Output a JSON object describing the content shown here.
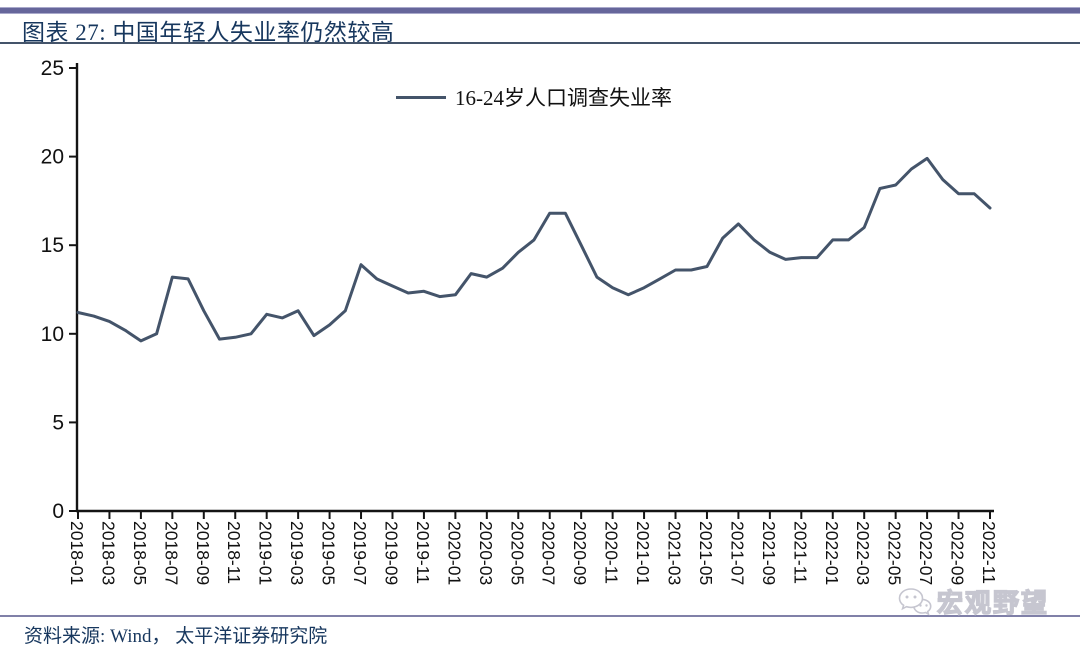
{
  "header": {
    "title": "图表 27:  中国年轻人失业率仍然较高"
  },
  "chart_data": {
    "type": "line",
    "legend": "16-24岁人口调查失业率",
    "xlabel": "",
    "ylabel": "",
    "ylim": [
      0,
      25
    ],
    "yticks": [
      0,
      5,
      10,
      15,
      20,
      25
    ],
    "xtick_every": 2,
    "grid": false,
    "legend_position": "top-center",
    "categories": [
      "2018-01",
      "2018-02",
      "2018-03",
      "2018-04",
      "2018-05",
      "2018-06",
      "2018-07",
      "2018-08",
      "2018-09",
      "2018-10",
      "2018-11",
      "2018-12",
      "2019-01",
      "2019-02",
      "2019-03",
      "2019-04",
      "2019-05",
      "2019-06",
      "2019-07",
      "2019-08",
      "2019-09",
      "2019-10",
      "2019-11",
      "2019-12",
      "2020-01",
      "2020-02",
      "2020-03",
      "2020-04",
      "2020-05",
      "2020-06",
      "2020-07",
      "2020-08",
      "2020-09",
      "2020-10",
      "2020-11",
      "2020-12",
      "2021-01",
      "2021-02",
      "2021-03",
      "2021-04",
      "2021-05",
      "2021-06",
      "2021-07",
      "2021-08",
      "2021-09",
      "2021-10",
      "2021-11",
      "2021-12",
      "2022-01",
      "2022-02",
      "2022-03",
      "2022-04",
      "2022-05",
      "2022-06",
      "2022-07",
      "2022-08",
      "2022-09",
      "2022-10",
      "2022-11"
    ],
    "series": [
      {
        "name": "16-24岁人口调查失业率",
        "values": [
          11.2,
          11.0,
          10.7,
          10.2,
          9.6,
          10.0,
          13.2,
          13.1,
          11.3,
          9.7,
          9.8,
          10.0,
          11.1,
          10.9,
          11.3,
          9.9,
          10.5,
          11.3,
          13.9,
          13.1,
          12.7,
          12.3,
          12.4,
          12.1,
          12.2,
          13.4,
          13.2,
          13.7,
          14.6,
          15.3,
          16.8,
          16.8,
          15.0,
          13.2,
          12.6,
          12.2,
          12.6,
          13.1,
          13.6,
          13.6,
          13.8,
          15.4,
          16.2,
          15.3,
          14.6,
          14.2,
          14.3,
          14.3,
          15.3,
          15.3,
          16.0,
          18.2,
          18.4,
          19.3,
          19.9,
          18.7,
          17.9,
          17.9,
          17.1
        ]
      }
    ],
    "line_color": "#44546A",
    "axis_color": "#141414"
  },
  "footer": {
    "source": "资料来源:  Wind， 太平洋证券研究院",
    "watermark": "宏观野望"
  },
  "colors": {
    "title_text": "#17375E",
    "top_bar": "#66669B",
    "title_rule": "#44546A",
    "footer_rule": "#8080A8",
    "watermark": "#c6c6d0"
  }
}
